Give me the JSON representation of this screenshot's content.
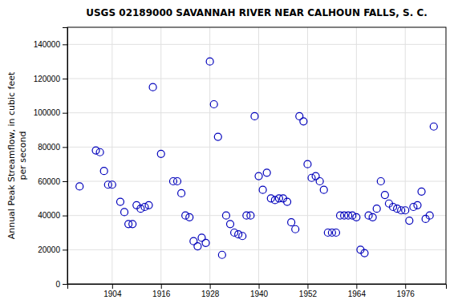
{
  "chart_data": {
    "type": "scatter",
    "title": "USGS 02189000 SAVANNAH RIVER NEAR CALHOUN FALLS, S. C.",
    "ylabel": [
      "Annual Peak Streamflow, in cubic feet",
      "per second"
    ],
    "x": [
      1896,
      1900,
      1901,
      1902,
      1903,
      1904,
      1906,
      1907,
      1908,
      1909,
      1910,
      1911,
      1912,
      1913,
      1914,
      1916,
      1919,
      1920,
      1921,
      1922,
      1923,
      1924,
      1925,
      1926,
      1927,
      1928,
      1929,
      1930,
      1931,
      1932,
      1933,
      1934,
      1935,
      1936,
      1937,
      1938,
      1939,
      1940,
      1941,
      1942,
      1943,
      1944,
      1945,
      1946,
      1947,
      1948,
      1949,
      1950,
      1951,
      1952,
      1953,
      1954,
      1955,
      1956,
      1957,
      1958,
      1959,
      1960,
      1961,
      1962,
      1963,
      1964,
      1965,
      1966,
      1967,
      1968,
      1969,
      1970,
      1971,
      1972,
      1973,
      1974,
      1975,
      1976,
      1977,
      1978,
      1979,
      1980,
      1981,
      1982,
      1983
    ],
    "values": [
      57000,
      78000,
      77000,
      66000,
      58000,
      58000,
      48000,
      42000,
      35000,
      35000,
      46000,
      44000,
      45000,
      46000,
      115000,
      76000,
      60000,
      60000,
      53000,
      40000,
      39000,
      25000,
      22000,
      27000,
      24000,
      130000,
      105000,
      86000,
      17000,
      40000,
      35000,
      30000,
      29000,
      28000,
      40000,
      40000,
      98000,
      63000,
      55000,
      65000,
      50000,
      49000,
      50000,
      50000,
      48000,
      36000,
      32000,
      98000,
      95000,
      70000,
      62000,
      63000,
      60000,
      55000,
      30000,
      30000,
      30000,
      40000,
      40000,
      40000,
      40000,
      39000,
      20000,
      18000,
      40000,
      39000,
      44000,
      60000,
      52000,
      47000,
      45000,
      44000,
      43000,
      43000,
      37000,
      45000,
      46000,
      54000,
      38000,
      40000,
      92000
    ],
    "color": "#0000BB",
    "marker": "circle",
    "xlim": [
      1893,
      1986
    ],
    "ylim": [
      0,
      150000
    ],
    "xticks": [
      1904,
      1916,
      1928,
      1940,
      1952,
      1964,
      1976
    ],
    "yticks": [
      0,
      20000,
      40000,
      60000,
      80000,
      100000,
      120000,
      140000
    ],
    "grid": true
  }
}
